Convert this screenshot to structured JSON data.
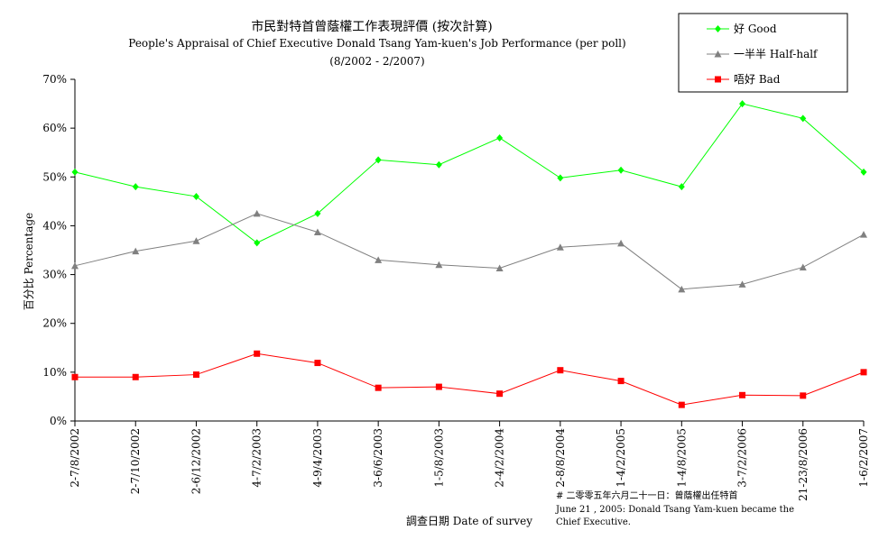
{
  "chart_data": {
    "type": "line",
    "title": "市民對特首曾蔭權工作表現評價 (按次計算)",
    "subtitle": "People's Appraisal of Chief Executive Donald Tsang Yam-kuen's Job Performance (per poll)",
    "period": "(8/2002 - 2/2007)",
    "xlabel": "調查日期 Date of survey",
    "ylabel": "百分比 Percentage",
    "ylim": [
      0,
      70
    ],
    "yticks": [
      "0%",
      "10%",
      "20%",
      "30%",
      "40%",
      "50%",
      "60%",
      "70%"
    ],
    "categories": [
      "2-7/8/2002",
      "2-7/10/2002",
      "2-6/12/2002",
      "4-7/2/2003",
      "4-9/4/2003",
      "3-6/6/2003",
      "1-5/8/2003",
      "2-4/2/2004",
      "2-8/8/2004",
      "1-4/2/2005",
      "1-4/8/2005",
      "3-7/2/2006",
      "21-23/8/2006",
      "1-6/2/2007"
    ],
    "series": [
      {
        "name": "好 Good",
        "color": "#00ff00",
        "marker": "diamond",
        "values": [
          51,
          48,
          46,
          36.5,
          42.5,
          53.5,
          52.5,
          58,
          49.8,
          51.4,
          48,
          65,
          62,
          51
        ]
      },
      {
        "name": "一半半 Half-half",
        "color": "#808080",
        "marker": "triangle",
        "values": [
          31.8,
          34.8,
          36.9,
          42.5,
          38.7,
          33,
          32,
          31.3,
          35.6,
          36.4,
          27,
          28,
          31.5,
          38.2
        ]
      },
      {
        "name": "唔好 Bad",
        "color": "#ff0000",
        "marker": "square",
        "values": [
          9,
          9,
          9.5,
          13.8,
          11.9,
          6.8,
          7,
          5.6,
          10.4,
          8.2,
          3.3,
          5.3,
          5.2,
          10
        ]
      }
    ],
    "grid": false,
    "legend_position": "top-right",
    "note_lines": [
      "# 二零零五年六月二十一日：曾蔭權出任特首",
      "June 21 , 2005: Donald Tsang Yam-kuen became the",
      "Chief Executive."
    ]
  }
}
